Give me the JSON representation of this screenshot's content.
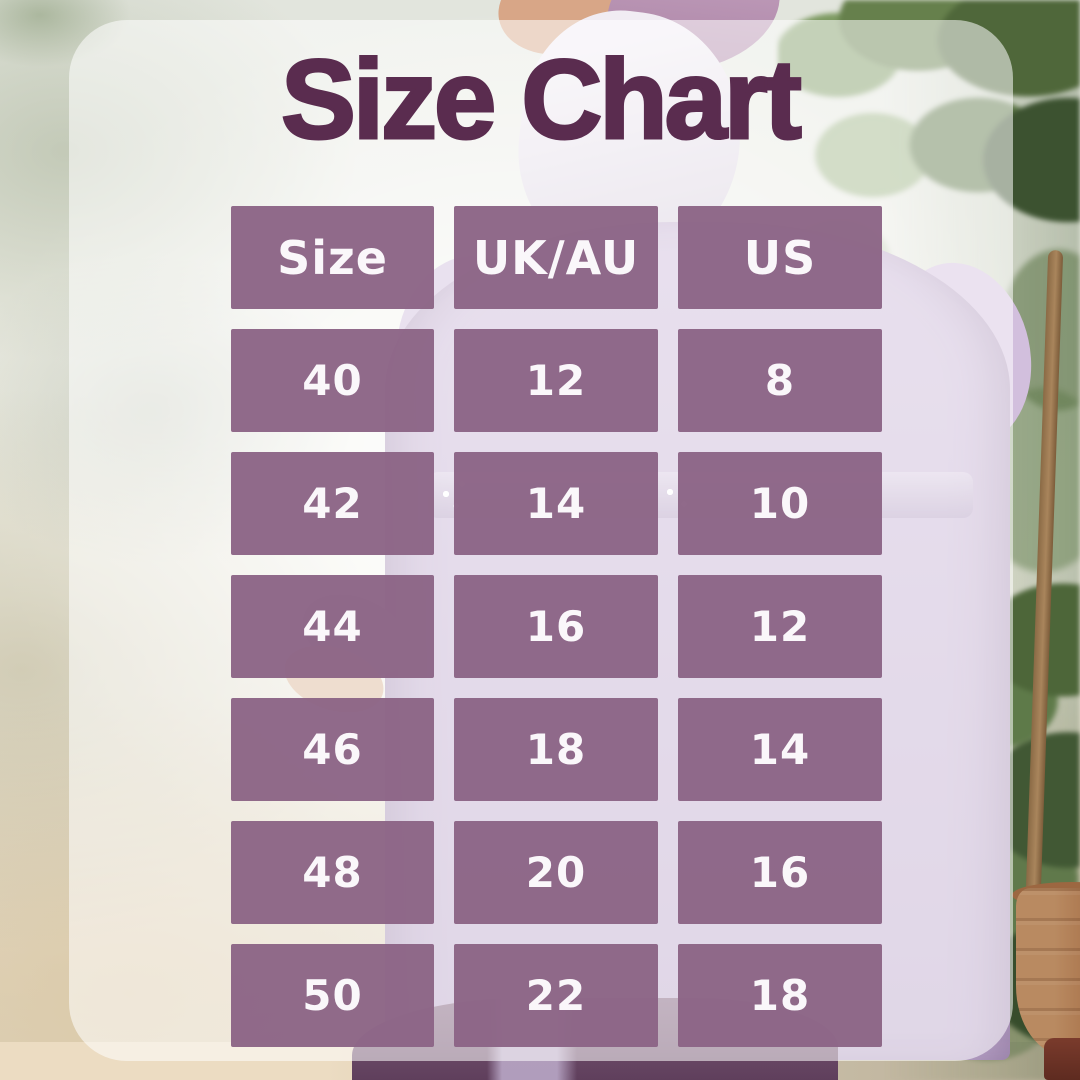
{
  "title": "Size Chart",
  "chart_data": {
    "type": "table",
    "title": "Size Chart",
    "columns": [
      "Size",
      "UK/AU",
      "US"
    ],
    "rows": [
      [
        "40",
        "12",
        "8"
      ],
      [
        "42",
        "14",
        "10"
      ],
      [
        "44",
        "16",
        "12"
      ],
      [
        "46",
        "18",
        "14"
      ],
      [
        "48",
        "20",
        "16"
      ],
      [
        "50",
        "22",
        "18"
      ]
    ]
  },
  "colors": {
    "title_text": "#5A2C4F",
    "cell_background": "#8B6485",
    "cell_text": "#FAF7FA",
    "card_overlay": "rgba(255,255,255,0.55)",
    "dress_lavender": "#C5B1D3",
    "skirt_purple": "#6D4B69",
    "foliage_green": "#5B7545",
    "pot_terracotta": "#A9744C",
    "wall": "#E9E9E3"
  },
  "background_scene": {
    "model": "woman in lavender hijab and dress",
    "setting": "textured wall with potted ficus plant and terracotta pot"
  }
}
